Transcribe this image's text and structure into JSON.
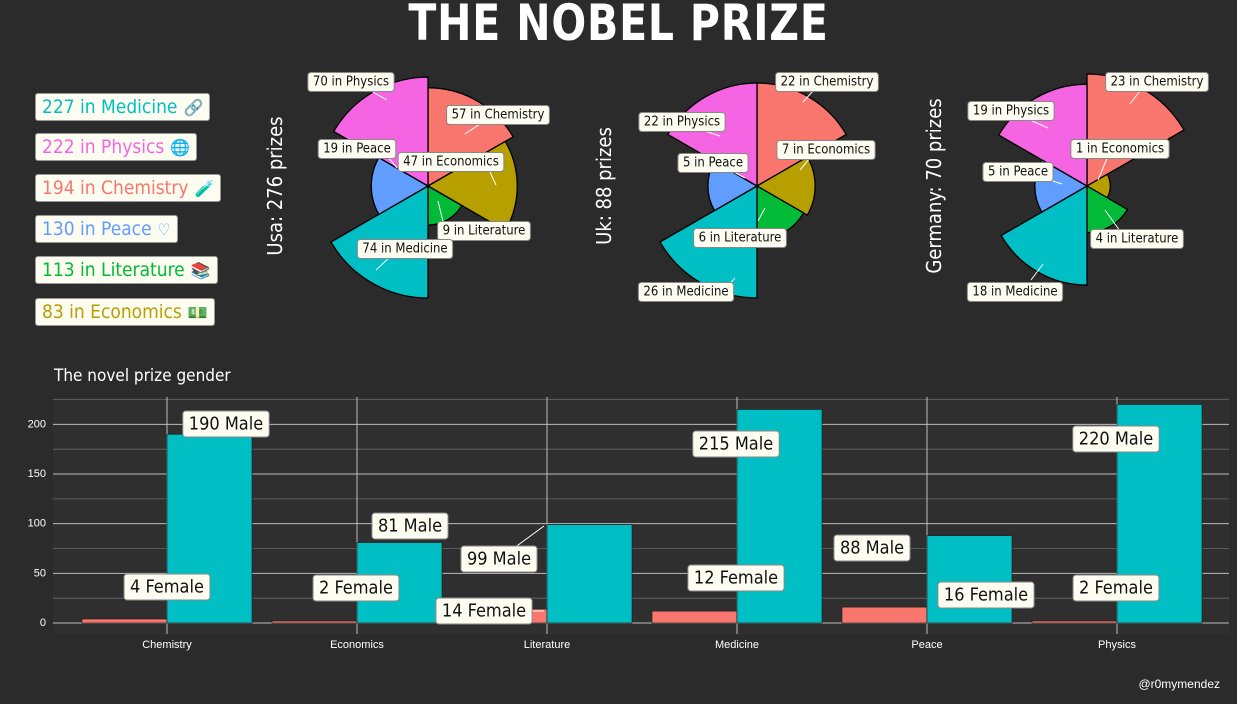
{
  "title": "THE NOBEL PRIZE",
  "caption": "@r0mymendez",
  "legend": [
    {
      "text": "227 in Medicine",
      "icon": "pill-icon",
      "glyph": "🔗",
      "color": "#00bfc4"
    },
    {
      "text": "222 in Physics",
      "icon": "atom-icon",
      "glyph": "🌐",
      "color": "#f564e3"
    },
    {
      "text": "194 in Chemistry",
      "icon": "flask-icon",
      "glyph": "🧪",
      "color": "#f8766d"
    },
    {
      "text": "130 in Peace",
      "icon": "heart-icon",
      "glyph": "♡",
      "color": "#619cff"
    },
    {
      "text": "113 in Literature",
      "icon": "books-icon",
      "glyph": "📚",
      "color": "#00ba38"
    },
    {
      "text": "83 in Economics",
      "icon": "money-icon",
      "glyph": "💵",
      "color": "#b79f00"
    }
  ],
  "chart_data": [
    {
      "type": "pie",
      "subtype": "polar-area",
      "country_label": "Usa: 276 prizes",
      "slices": [
        {
          "category": "Chemistry",
          "value": 57,
          "label": "57 in Chemistry",
          "color": "#f8766d"
        },
        {
          "category": "Economics",
          "value": 47,
          "label": "47 in Economics",
          "color": "#b79f00"
        },
        {
          "category": "Literature",
          "value": 9,
          "label": "9 in Literature",
          "color": "#00ba38"
        },
        {
          "category": "Medicine",
          "value": 74,
          "label": "74 in Medicine",
          "color": "#00bfc4"
        },
        {
          "category": "Peace",
          "value": 19,
          "label": "19 in Peace",
          "color": "#619cff"
        },
        {
          "category": "Physics",
          "value": 70,
          "label": "70 in Physics",
          "color": "#f564e3"
        }
      ]
    },
    {
      "type": "pie",
      "subtype": "polar-area",
      "country_label": "Uk: 88 prizes",
      "slices": [
        {
          "category": "Chemistry",
          "value": 22,
          "label": "22 in Chemistry",
          "color": "#f8766d"
        },
        {
          "category": "Economics",
          "value": 7,
          "label": "7 in Economics",
          "color": "#b79f00"
        },
        {
          "category": "Literature",
          "value": 6,
          "label": "6 in Literature",
          "color": "#00ba38"
        },
        {
          "category": "Medicine",
          "value": 26,
          "label": "26 in Medicine",
          "color": "#00bfc4"
        },
        {
          "category": "Peace",
          "value": 5,
          "label": "5 in Peace",
          "color": "#619cff"
        },
        {
          "category": "Physics",
          "value": 22,
          "label": "22 in Physics",
          "color": "#f564e3"
        }
      ]
    },
    {
      "type": "pie",
      "subtype": "polar-area",
      "country_label": "Germany: 70 prizes",
      "slices": [
        {
          "category": "Chemistry",
          "value": 23,
          "label": "23 in Chemistry",
          "color": "#f8766d"
        },
        {
          "category": "Economics",
          "value": 1,
          "label": "1 in Economics",
          "color": "#b79f00"
        },
        {
          "category": "Literature",
          "value": 4,
          "label": "4 in Literature",
          "color": "#00ba38"
        },
        {
          "category": "Medicine",
          "value": 18,
          "label": "18 in Medicine",
          "color": "#00bfc4"
        },
        {
          "category": "Peace",
          "value": 5,
          "label": "5 in Peace",
          "color": "#619cff"
        },
        {
          "category": "Physics",
          "value": 19,
          "label": "19 in Physics",
          "color": "#f564e3"
        }
      ]
    },
    {
      "type": "bar",
      "title": "The novel prize gender",
      "categories": [
        "Chemistry",
        "Economics",
        "Literature",
        "Medicine",
        "Peace",
        "Physics"
      ],
      "series": [
        {
          "values": [
            4,
            2,
            14,
            12,
            16,
            2
          ],
          "color": "#f8766d",
          "labels": [
            "4 Female",
            "2 Female",
            "14 Female",
            "12 Female",
            "16 Female",
            "2 Female"
          ]
        },
        {
          "values": [
            190,
            81,
            99,
            215,
            88,
            220
          ],
          "color": "#00bfc4",
          "labels": [
            "190 Male",
            "81 Male",
            "99 Male",
            "215 Male",
            "88 Male",
            "220 Male"
          ]
        }
      ],
      "yticks": [
        0,
        50,
        100,
        150,
        200
      ],
      "ylim": [
        0,
        225
      ],
      "grid": true
    }
  ]
}
